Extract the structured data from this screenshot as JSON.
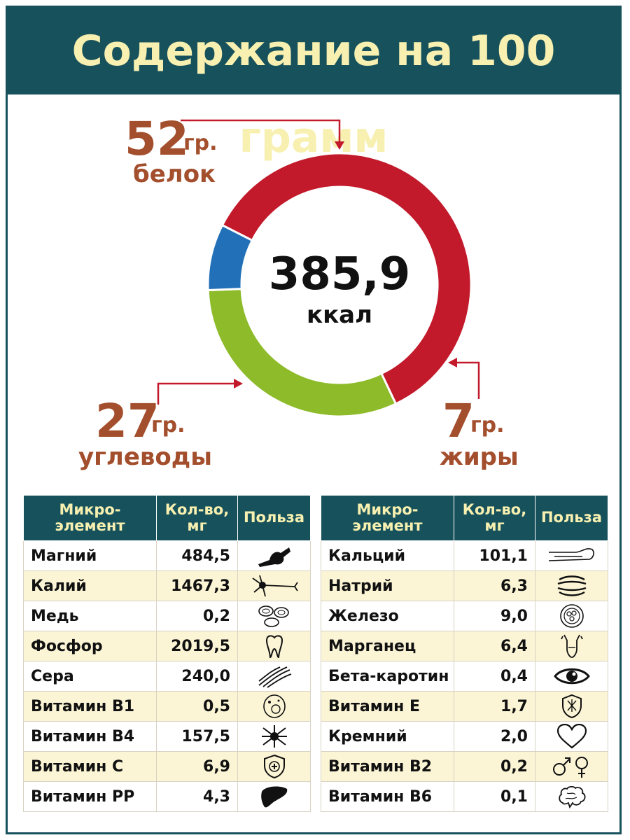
{
  "title": "Содержание на 100 грамм",
  "energy": {
    "value": "385,9",
    "unit": "ккал"
  },
  "macros": {
    "protein": {
      "value": "52",
      "unit": "гр.",
      "label": "белок"
    },
    "carbs": {
      "value": "27",
      "unit": "гр.",
      "label": "углеводы"
    },
    "fat": {
      "value": "7",
      "unit": "гр.",
      "label": "жиры"
    }
  },
  "colors": {
    "protein": "#c21a2b",
    "carbs": "#8dbb2a",
    "fat": "#2270b8",
    "header": "#17525c",
    "accent_text": "#a34e2c"
  },
  "chart_data": {
    "type": "pie",
    "categories": [
      "белок",
      "углеводы",
      "жиры"
    ],
    "values": [
      52,
      27,
      7
    ],
    "center_label": "385,9 ккал"
  },
  "table_headers": {
    "element": "Микро-элемент",
    "element_l1": "Микро-",
    "element_l2": "элемент",
    "amount_l1": "Кол-во,",
    "amount_l2": "мг",
    "benefit": "Польза"
  },
  "left_table": [
    {
      "name": "Магний",
      "value": "484,5",
      "icon": "joint-icon"
    },
    {
      "name": "Калий",
      "value": "1467,3",
      "icon": "neuron-icon"
    },
    {
      "name": "Медь",
      "value": "0,2",
      "icon": "blood-cells-icon"
    },
    {
      "name": "Фосфор",
      "value": "2019,5",
      "icon": "tooth-icon"
    },
    {
      "name": "Сера",
      "value": "240,0",
      "icon": "hair-icon"
    },
    {
      "name": "Витамин В1",
      "value": "0,5",
      "icon": "cell-icon"
    },
    {
      "name": "Витамин В4",
      "value": "157,5",
      "icon": "nerve-cell-icon"
    },
    {
      "name": "Витамин С",
      "value": "6,9",
      "icon": "immunity-shield-icon"
    },
    {
      "name": "Витамин РР",
      "value": "4,3",
      "icon": "liver-icon"
    }
  ],
  "right_table": [
    {
      "name": "Кальций",
      "value": "101,1",
      "icon": "bone-icon"
    },
    {
      "name": "Натрий",
      "value": "6,3",
      "icon": "muscle-fibers-icon"
    },
    {
      "name": "Железо",
      "value": "9,0",
      "icon": "blood-cell-icon"
    },
    {
      "name": "Марганец",
      "value": "6,4",
      "icon": "body-figure-icon"
    },
    {
      "name": "Бета-каротин",
      "value": "0,4",
      "icon": "eye-icon"
    },
    {
      "name": "Витамин Е",
      "value": "1,7",
      "icon": "skin-shield-icon"
    },
    {
      "name": "Кремний",
      "value": "2,0",
      "icon": "heart-icon"
    },
    {
      "name": "Витамин В2",
      "value": "0,2",
      "icon": "gender-icon"
    },
    {
      "name": "Витамин В6",
      "value": "0,1",
      "icon": "brain-icon"
    }
  ]
}
